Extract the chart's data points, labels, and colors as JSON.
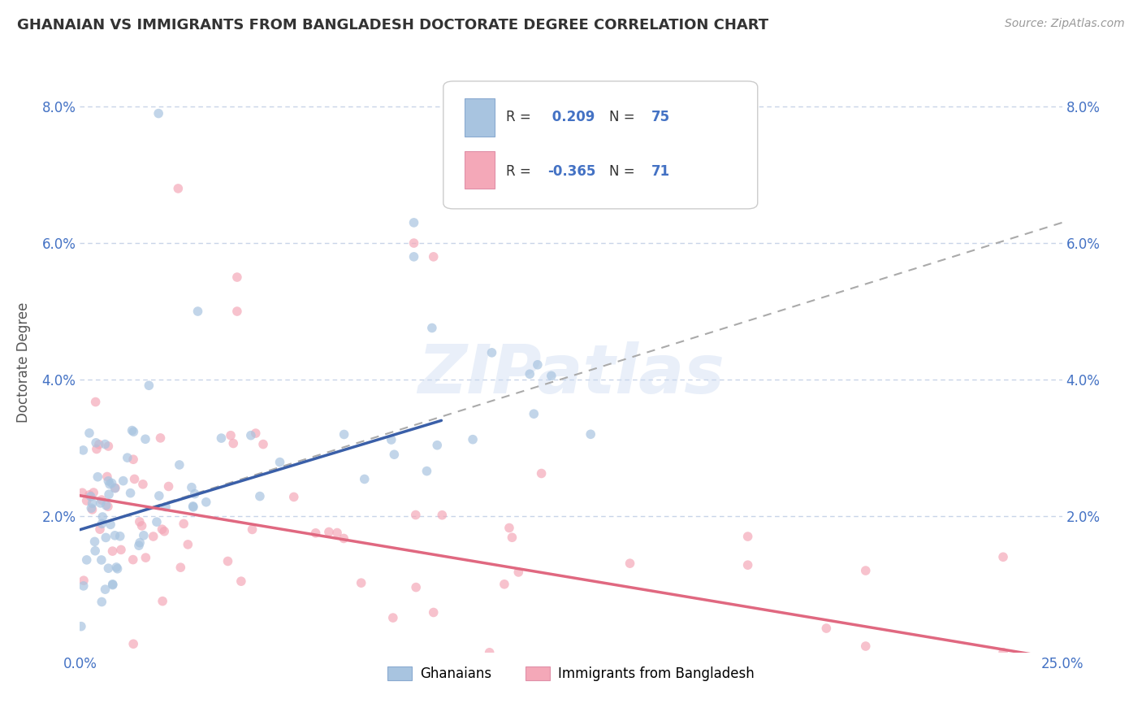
{
  "title": "GHANAIAN VS IMMIGRANTS FROM BANGLADESH DOCTORATE DEGREE CORRELATION CHART",
  "source": "Source: ZipAtlas.com",
  "ylabel": "Doctorate Degree",
  "xlabel": "",
  "xlim": [
    0.0,
    0.25
  ],
  "ylim": [
    0.0,
    0.085
  ],
  "xticks": [
    0.0,
    0.05,
    0.1,
    0.15,
    0.2,
    0.25
  ],
  "xticklabels": [
    "0.0%",
    "",
    "",
    "",
    "",
    "25.0%"
  ],
  "yticks": [
    0.0,
    0.02,
    0.04,
    0.06,
    0.08
  ],
  "yticklabels_left": [
    "",
    "2.0%",
    "4.0%",
    "6.0%",
    "8.0%"
  ],
  "yticklabels_right": [
    "",
    "2.0%",
    "4.0%",
    "6.0%",
    "8.0%"
  ],
  "ghanaian_color": "#a8c4e0",
  "bangladesh_color": "#f4a8b8",
  "ghanaian_line_color": "#3a5fa8",
  "bangladesh_line_color": "#e06880",
  "dashed_line_color": "#aaaaaa",
  "ghanaian_R": 0.209,
  "ghanaian_N": 75,
  "bangladesh_R": -0.365,
  "bangladesh_N": 71,
  "watermark": "ZIPatlas",
  "legend_label_1": "Ghanaians",
  "legend_label_2": "Immigrants from Bangladesh",
  "title_fontsize": 13,
  "tick_color": "#4472c4",
  "grid_color": "#c8d4e8",
  "scatter_alpha": 0.7,
  "scatter_size": 70,
  "ghanaian_line_x0": 0.0,
  "ghanaian_line_y0": 0.018,
  "ghanaian_line_x1": 0.092,
  "ghanaian_line_y1": 0.034,
  "dashed_line_x0": 0.0,
  "dashed_line_y0": 0.018,
  "dashed_line_x1": 0.25,
  "dashed_line_y1": 0.063,
  "bangladesh_line_x0": 0.0,
  "bangladesh_line_y0": 0.023,
  "bangladesh_line_x1": 0.25,
  "bangladesh_line_y1": -0.001
}
